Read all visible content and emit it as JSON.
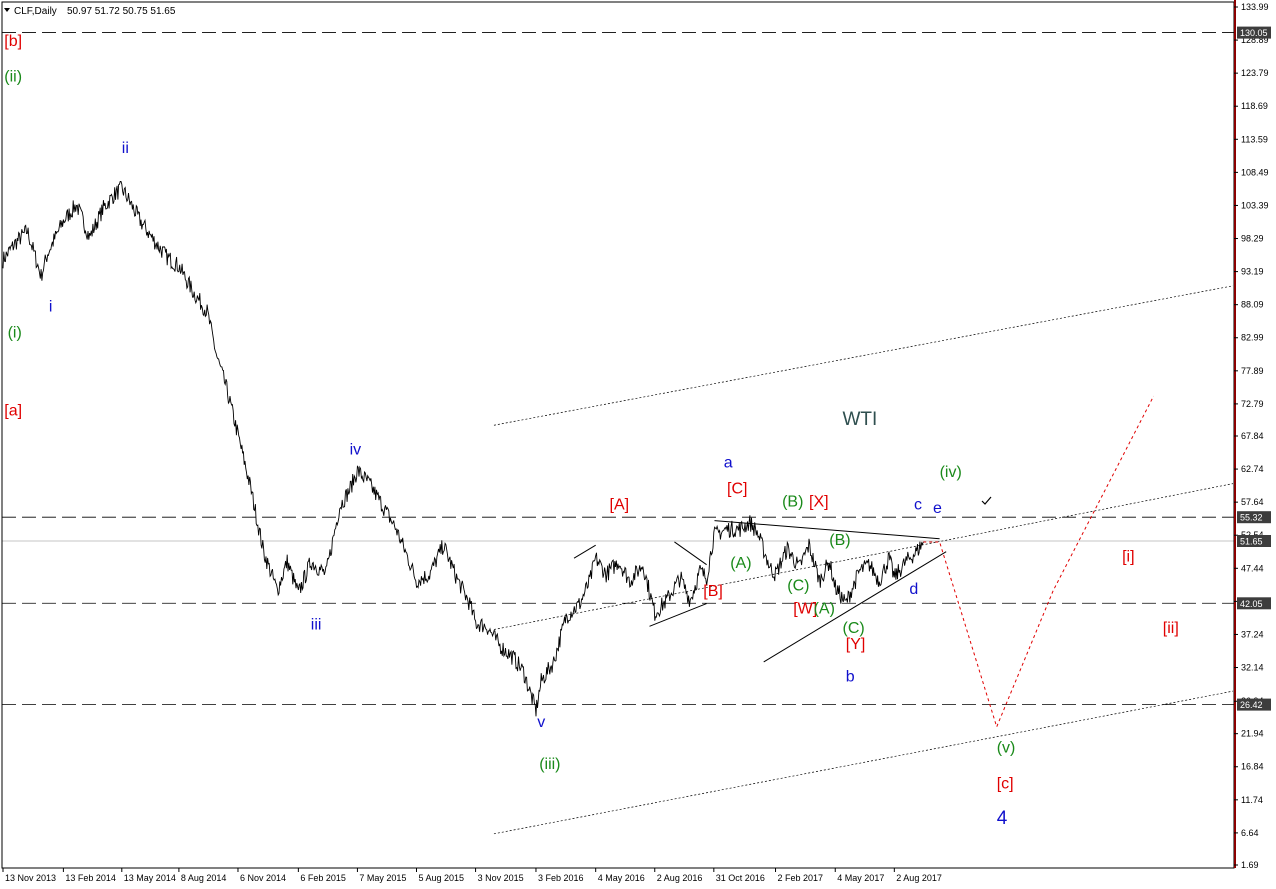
{
  "header": {
    "symbol_line": "CLF,Daily",
    "ohlc": "50.97 51.72 50.75 51.65"
  },
  "colors": {
    "wave_red": "#e00000",
    "wave_green": "#1a8a1a",
    "wave_blue": "#1010cc",
    "axis_red": "#8b0000",
    "price": "#000000",
    "label_bg": "#3d3d3d"
  },
  "chart_data": {
    "type": "line",
    "title": "",
    "xlabel": "",
    "ylabel": "",
    "ylim": [
      1.69,
      133.99
    ],
    "y_ticks": [
      133.99,
      128.89,
      123.79,
      118.69,
      113.59,
      108.49,
      103.39,
      98.29,
      93.19,
      88.09,
      82.99,
      77.89,
      72.79,
      67.84,
      62.74,
      57.64,
      52.54,
      47.44,
      42.34,
      37.24,
      32.14,
      26.94,
      21.94,
      16.84,
      11.74,
      6.64,
      1.69
    ],
    "x_ticks": [
      "13 Nov 2013",
      "13 Feb 2014",
      "13 May 2014",
      "8 Aug 2014",
      "6 Nov 2014",
      "6 Feb 2015",
      "7 May 2015",
      "5 Aug 2015",
      "3 Nov 2015",
      "3 Feb 2016",
      "4 May 2016",
      "2 Aug 2016",
      "31 Oct 2016",
      "2 Feb 2017",
      "4 May 2017",
      "2 Aug 2017"
    ],
    "x_range": [
      "2013-11-13",
      "2018-12-31"
    ],
    "series": [
      {
        "x": [
          "2013-11-13",
          "2013-12-01",
          "2013-12-20",
          "2014-01-10",
          "2014-01-20",
          "2014-02-13",
          "2014-03-05",
          "2014-03-25",
          "2014-04-15",
          "2014-05-01",
          "2014-05-13",
          "2014-05-22",
          "2014-06-10",
          "2014-07-01",
          "2014-07-20",
          "2014-08-08",
          "2014-08-30",
          "2014-09-20",
          "2014-10-05",
          "2014-10-20",
          "2014-11-06",
          "2014-11-25",
          "2014-12-15",
          "2015-01-05",
          "2015-01-20",
          "2015-02-06",
          "2015-02-25",
          "2015-03-20",
          "2015-04-10",
          "2015-04-25",
          "2015-05-07",
          "2015-05-25",
          "2015-06-15",
          "2015-07-05",
          "2015-07-25",
          "2015-08-05",
          "2015-08-25",
          "2015-09-15",
          "2015-10-05",
          "2015-10-25",
          "2015-11-03",
          "2015-11-20",
          "2015-12-10",
          "2016-01-01",
          "2016-01-15",
          "2016-02-03",
          "2016-02-11",
          "2016-03-01",
          "2016-03-20",
          "2016-04-10",
          "2016-04-25",
          "2016-05-04",
          "2016-05-20",
          "2016-06-08",
          "2016-06-25",
          "2016-07-15",
          "2016-08-02",
          "2016-08-20",
          "2016-09-10",
          "2016-09-25",
          "2016-10-10",
          "2016-10-20",
          "2016-10-31",
          "2016-11-20",
          "2016-12-10",
          "2016-12-25",
          "2017-01-05",
          "2017-01-25",
          "2017-02-02",
          "2017-02-20",
          "2017-03-10",
          "2017-03-25",
          "2017-04-10",
          "2017-04-25",
          "2017-05-04",
          "2017-05-20",
          "2017-06-10",
          "2017-06-25",
          "2017-07-10",
          "2017-07-25",
          "2017-08-02",
          "2017-08-20",
          "2017-09-05",
          "2017-09-15"
        ],
        "y": [
          95.0,
          97.5,
          99.5,
          92.5,
          96.0,
          101.0,
          103.5,
          98.5,
          103.0,
          105.0,
          106.0,
          104.5,
          101.0,
          98.0,
          95.5,
          94.0,
          90.0,
          87.0,
          80.0,
          75.0,
          68.0,
          60.0,
          50.0,
          44.0,
          48.5,
          43.5,
          48.5,
          46.5,
          57.0,
          59.5,
          62.5,
          60.5,
          57.0,
          53.5,
          48.5,
          45.5,
          46.5,
          51.0,
          46.0,
          42.0,
          39.0,
          38.5,
          35.5,
          33.5,
          31.5,
          25.5,
          30.0,
          33.0,
          40.0,
          42.0,
          45.5,
          49.0,
          46.5,
          48.5,
          45.5,
          48.0,
          40.5,
          42.5,
          46.0,
          42.5,
          47.0,
          46.0,
          52.5,
          53.5,
          53.5,
          54.5,
          53.0,
          47.5,
          46.5,
          50.5,
          47.5,
          51.0,
          45.5,
          48.5,
          44.5,
          42.0,
          47.0,
          48.0,
          45.5,
          49.0,
          46.0,
          48.5,
          50.0,
          51.5
        ]
      }
    ],
    "projection": {
      "x": [
        "2017-09-15",
        "2017-10-10",
        "2018-01-05",
        "2018-04-01",
        "2018-09-01"
      ],
      "y": [
        51.5,
        51.5,
        23.0,
        44.0,
        74.0
      ]
    },
    "price_labels": [
      {
        "price": 130.05,
        "text": "130.05"
      },
      {
        "price": 55.32,
        "text": "55.32"
      },
      {
        "price": 51.65,
        "text": "51.65"
      },
      {
        "price": 42.05,
        "text": "42.05"
      },
      {
        "price": 26.42,
        "text": "26.42"
      }
    ],
    "annotations": [
      {
        "text": "[b]",
        "color": "red",
        "x": "2013-11-15",
        "y": 128.0
      },
      {
        "text": "(ii)",
        "color": "green",
        "x": "2013-11-15",
        "y": 122.5
      },
      {
        "text": "ii",
        "color": "blue",
        "x": "2014-05-13",
        "y": 111.5
      },
      {
        "text": "i",
        "color": "blue",
        "x": "2014-01-22",
        "y": 87.0
      },
      {
        "text": "(i)",
        "color": "green",
        "x": "2013-11-20",
        "y": 83.0
      },
      {
        "text": "[a]",
        "color": "red",
        "x": "2013-11-15",
        "y": 71.0
      },
      {
        "text": "iv",
        "color": "blue",
        "x": "2015-04-25",
        "y": 65.0
      },
      {
        "text": "iii",
        "color": "blue",
        "x": "2015-02-25",
        "y": 38.0
      },
      {
        "text": "v",
        "color": "blue",
        "x": "2016-02-05",
        "y": 23.0
      },
      {
        "text": "(iii)",
        "color": "green",
        "x": "2016-02-08",
        "y": 16.5
      },
      {
        "text": "[A]",
        "color": "red",
        "x": "2016-05-25",
        "y": 56.5
      },
      {
        "text": "a",
        "color": "blue",
        "x": "2016-11-15",
        "y": 63.0
      },
      {
        "text": "[C]",
        "color": "red",
        "x": "2016-11-20",
        "y": 59.0
      },
      {
        "text": "(B)",
        "color": "green",
        "x": "2017-02-12",
        "y": 57.0
      },
      {
        "text": "[X]",
        "color": "red",
        "x": "2017-03-25",
        "y": 57.0
      },
      {
        "text": "WTI",
        "color": "dark",
        "x": "2017-05-15",
        "y": 69.5
      },
      {
        "text": "(iv)",
        "color": "green",
        "x": "2017-10-10",
        "y": 61.5
      },
      {
        "text": "c",
        "color": "blue",
        "x": "2017-09-01",
        "y": 56.5
      },
      {
        "text": "e",
        "color": "blue",
        "x": "2017-09-30",
        "y": 56.0
      },
      {
        "text": "(B)",
        "color": "green",
        "x": "2017-04-25",
        "y": 51.0
      },
      {
        "text": "(A)",
        "color": "green",
        "x": "2016-11-25",
        "y": 47.5
      },
      {
        "text": "[B]",
        "color": "red",
        "x": "2016-10-15",
        "y": 43.2
      },
      {
        "text": "(C)",
        "color": "green",
        "x": "2017-02-20",
        "y": 44.0
      },
      {
        "text": "[W]",
        "color": "red",
        "x": "2017-03-01",
        "y": 40.5
      },
      {
        "text": "(A)",
        "color": "green",
        "x": "2017-04-01",
        "y": 40.5
      },
      {
        "text": "d",
        "color": "blue",
        "x": "2017-08-25",
        "y": 43.5
      },
      {
        "text": "(C)",
        "color": "green",
        "x": "2017-05-15",
        "y": 37.5
      },
      {
        "text": "[Y]",
        "color": "red",
        "x": "2017-05-20",
        "y": 35.0
      },
      {
        "text": "b",
        "color": "blue",
        "x": "2017-05-20",
        "y": 30.0
      },
      {
        "text": "[i]",
        "color": "red",
        "x": "2018-07-15",
        "y": 48.5
      },
      {
        "text": "[ii]",
        "color": "red",
        "x": "2018-09-15",
        "y": 37.5
      },
      {
        "text": "(v)",
        "color": "green",
        "x": "2018-01-05",
        "y": 19.0
      },
      {
        "text": "[c]",
        "color": "red",
        "x": "2018-01-05",
        "y": 13.5
      },
      {
        "text": "4",
        "color": "blue",
        "x": "2018-01-05",
        "y": 8.0
      }
    ]
  }
}
